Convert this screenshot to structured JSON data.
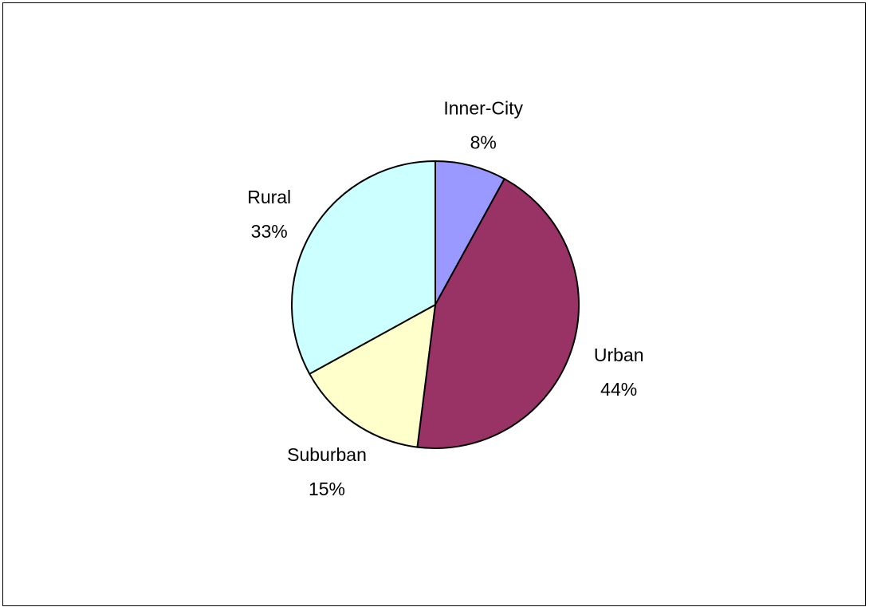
{
  "chart_data": {
    "type": "pie",
    "title": "",
    "slices": [
      {
        "label": "Inner-City",
        "value": 8,
        "display": "8%",
        "color": "#9999FF"
      },
      {
        "label": "Urban",
        "value": 44,
        "display": "44%",
        "color": "#993366"
      },
      {
        "label": "Suburban",
        "value": 15,
        "display": "15%",
        "color": "#FFFFCC"
      },
      {
        "label": "Rural",
        "value": 33,
        "display": "33%",
        "color": "#CCFFFF"
      }
    ],
    "start_angle_deg": 0,
    "direction": "clockwise",
    "legend": "none",
    "data_labels": "category-and-percent"
  }
}
